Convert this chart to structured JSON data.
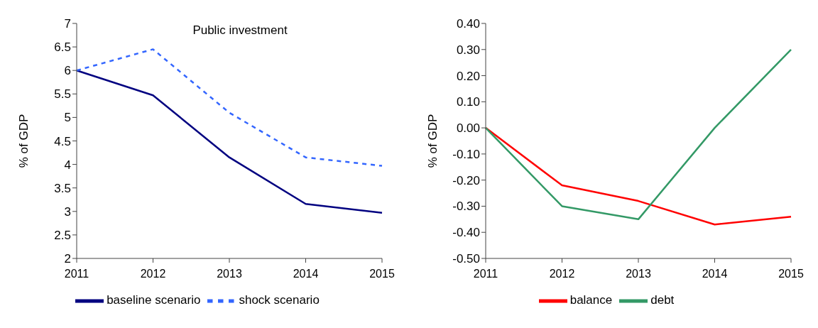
{
  "chart_data": [
    {
      "type": "line",
      "title": "Public investment",
      "ylabel": "% of GDP",
      "categories": [
        "2011",
        "2012",
        "2013",
        "2014",
        "2015"
      ],
      "series": [
        {
          "name": "baseline scenario",
          "color": "#000080",
          "line_style": "solid",
          "values": [
            6.0,
            5.47,
            4.15,
            3.16,
            2.97
          ]
        },
        {
          "name": "shock scenario",
          "color": "#3366ff",
          "line_style": "dashed",
          "values": [
            6.0,
            6.45,
            5.1,
            4.15,
            3.97
          ]
        }
      ],
      "ylim": [
        2,
        7
      ],
      "yticks": [
        2,
        2.5,
        3,
        3.5,
        4,
        4.5,
        5,
        5.5,
        6,
        6.5,
        7
      ],
      "grid": false,
      "legend": "bottom",
      "marker": "none"
    },
    {
      "type": "line",
      "ylabel": "% of GDP",
      "categories": [
        "2011",
        "2012",
        "2013",
        "2014",
        "2015"
      ],
      "series": [
        {
          "name": "balance",
          "color": "#ff0000",
          "values": [
            0,
            -0.22,
            -0.28,
            -0.37,
            -0.34
          ]
        },
        {
          "name": "debt",
          "color": "#339966",
          "values": [
            0,
            -0.3,
            -0.35,
            0.0,
            0.3
          ]
        }
      ],
      "ylim": [
        -0.5,
        0.4
      ],
      "yticks": [
        {
          "value": -0.5,
          "label": "-0.50"
        },
        {
          "value": -0.4,
          "label": "-0.40"
        },
        {
          "value": -0.3,
          "label": "-0.30"
        },
        {
          "value": -0.2,
          "label": "-0.20"
        },
        {
          "value": -0.1,
          "label": "-0.10"
        },
        {
          "value": 0,
          "label": "0.00"
        },
        {
          "value": 0.1,
          "label": "0.10"
        },
        {
          "value": 0.2,
          "label": "0.20"
        },
        {
          "value": 0.3,
          "label": "0.30"
        },
        {
          "value": 0.4,
          "label": "0.40"
        }
      ],
      "grid": false,
      "legend": "bottom",
      "marker": "none"
    }
  ]
}
